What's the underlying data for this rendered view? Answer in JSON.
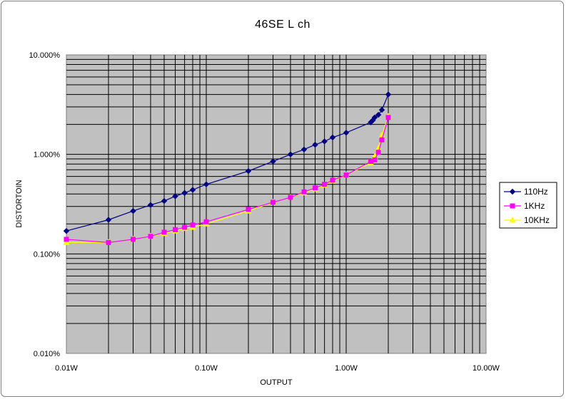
{
  "chart_data": {
    "type": "line",
    "title": "46SE L ch",
    "xlabel": "OUTPUT",
    "ylabel": "DISTORTOIN",
    "x_scale": "log",
    "y_scale": "log",
    "xlim": [
      0.01,
      10
    ],
    "ylim": [
      0.01,
      10
    ],
    "x_tick_labels": [
      "0.01W",
      "0.10W",
      "1.00W",
      "10.00W"
    ],
    "y_tick_labels": [
      "10.000%",
      "1.000%",
      "0.100%",
      "0.010%"
    ],
    "x_tick_values": [
      0.01,
      0.1,
      1,
      10
    ],
    "y_tick_values": [
      10,
      1,
      0.1,
      0.01
    ],
    "grid": true,
    "plot_background": "#c0c0c0",
    "legend_position": "right",
    "series": [
      {
        "name": "110Hz",
        "color": "#000080",
        "marker": "diamond",
        "x": [
          0.01,
          0.02,
          0.03,
          0.04,
          0.05,
          0.06,
          0.07,
          0.08,
          0.1,
          0.2,
          0.3,
          0.4,
          0.5,
          0.6,
          0.7,
          0.8,
          1.0,
          1.5,
          1.55,
          1.6,
          1.7,
          1.8,
          2.0
        ],
        "y": [
          0.17,
          0.22,
          0.27,
          0.31,
          0.34,
          0.38,
          0.41,
          0.44,
          0.5,
          0.68,
          0.85,
          1.0,
          1.12,
          1.25,
          1.35,
          1.48,
          1.65,
          2.1,
          2.2,
          2.35,
          2.5,
          2.8,
          4.0
        ]
      },
      {
        "name": "1KHz",
        "color": "#ff00ff",
        "marker": "square",
        "x": [
          0.01,
          0.02,
          0.03,
          0.04,
          0.05,
          0.06,
          0.07,
          0.08,
          0.1,
          0.2,
          0.3,
          0.4,
          0.5,
          0.6,
          0.7,
          0.8,
          1.0,
          1.5,
          1.6,
          1.7,
          1.8,
          2.0
        ],
        "y": [
          0.14,
          0.13,
          0.14,
          0.15,
          0.165,
          0.175,
          0.185,
          0.195,
          0.21,
          0.28,
          0.33,
          0.37,
          0.42,
          0.46,
          0.5,
          0.55,
          0.62,
          0.85,
          0.88,
          1.05,
          1.4,
          2.35
        ]
      },
      {
        "name": "10KHz",
        "color": "#ffff00",
        "marker": "triangle",
        "x": [
          0.01,
          0.02,
          0.03,
          0.04,
          0.05,
          0.06,
          0.07,
          0.08,
          0.1,
          0.2,
          0.3,
          0.4,
          0.5,
          0.6,
          0.7,
          0.8,
          1.0,
          1.5,
          1.6,
          1.7,
          1.8,
          2.0
        ],
        "y": [
          0.13,
          0.13,
          0.14,
          0.15,
          0.16,
          0.17,
          0.18,
          0.185,
          0.2,
          0.27,
          0.33,
          0.37,
          0.41,
          0.45,
          0.49,
          0.54,
          0.62,
          0.82,
          0.95,
          1.15,
          1.55,
          2.4
        ]
      }
    ]
  }
}
